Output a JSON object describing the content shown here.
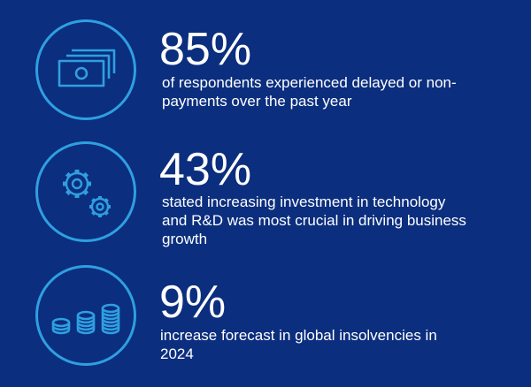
{
  "stats": [
    {
      "value": "85%",
      "description_lines": [
        "of respondents experienced delayed or non-",
        "payments over the past year"
      ],
      "icon": "banknotes-icon"
    },
    {
      "value": "43%",
      "description_lines": [
        "stated increasing investment in technology",
        "and R&D was most crucial in driving business",
        "growth"
      ],
      "icon": "gears-icon"
    },
    {
      "value": "9%",
      "description_lines": [
        "increase forecast in global insolvencies in",
        "2024"
      ],
      "icon": "coin-stacks-icon"
    }
  ],
  "colors": {
    "background": "#0b2e7e",
    "accent": "#2f9fe0",
    "text": "#ffffff"
  }
}
